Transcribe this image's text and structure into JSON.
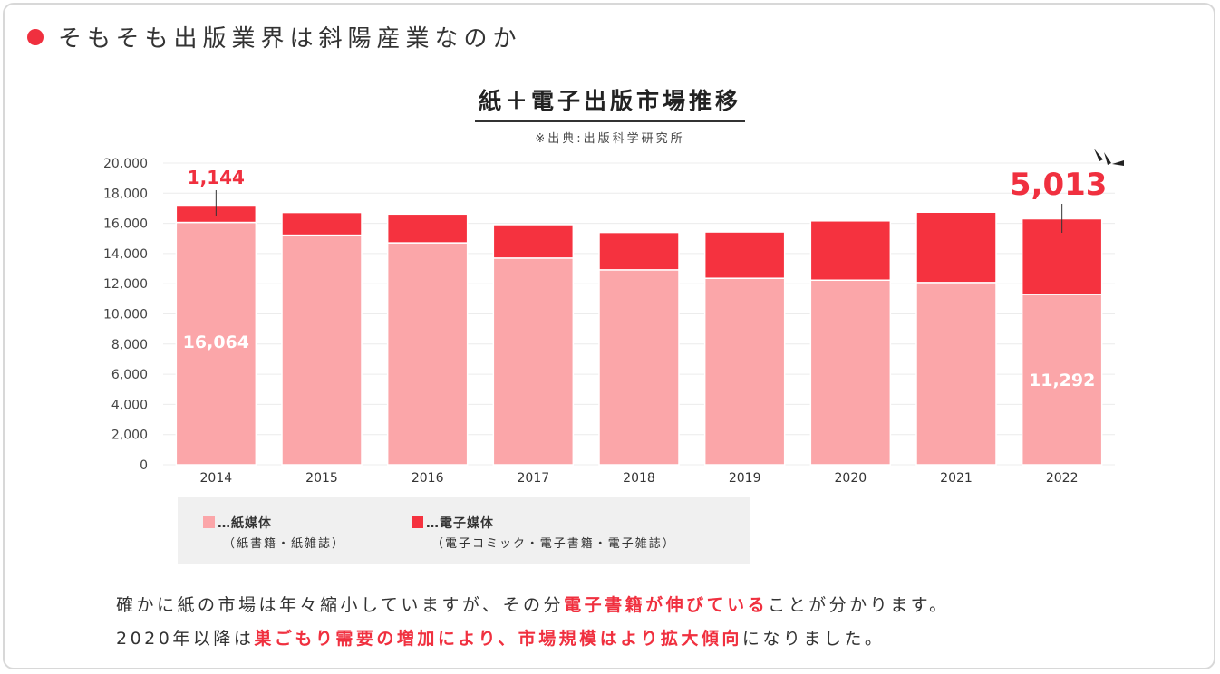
{
  "heading": "そもそも出版業界は斜陽産業なのか",
  "chart_data": {
    "type": "bar",
    "stacked": true,
    "title": "紙＋電子出版市場推移",
    "source": "※出典:出版科学研究所",
    "categories": [
      "2014",
      "2015",
      "2016",
      "2017",
      "2018",
      "2019",
      "2020",
      "2021",
      "2022"
    ],
    "series": [
      {
        "name": "紙媒体",
        "sub": "（紙書籍・紙雑誌）",
        "color": "#fba6a9",
        "values": [
          16064,
          15220,
          14709,
          13701,
          12921,
          12360,
          12237,
          12080,
          11292
        ]
      },
      {
        "name": "電子媒体",
        "sub": "（電子コミック・電子書籍・電子雑誌）",
        "color": "#f5323f",
        "values": [
          1144,
          1502,
          1909,
          2215,
          2479,
          3072,
          3931,
          4662,
          5013
        ]
      }
    ],
    "ylim": [
      0,
      20000
    ],
    "yticks": [
      "0",
      "2,000",
      "4,000",
      "6,000",
      "8,000",
      "10,000",
      "12,000",
      "14,000",
      "16,000",
      "18,000",
      "20,000"
    ],
    "annotations": {
      "e2014": "1,144",
      "p2014": "16,064",
      "p2022": "11,292",
      "e2022": "5,013"
    },
    "legend_prefix": "…"
  },
  "body": {
    "l1a": "確かに紙の市場は年々縮小していますが、その分",
    "l1b": "電子書籍が伸びている",
    "l1c": "ことが分かります。",
    "l2a": "2020年以降は",
    "l2b": "巣ごもり需要の増加により、市場規模はより拡大傾向",
    "l2c": "になりました。"
  }
}
